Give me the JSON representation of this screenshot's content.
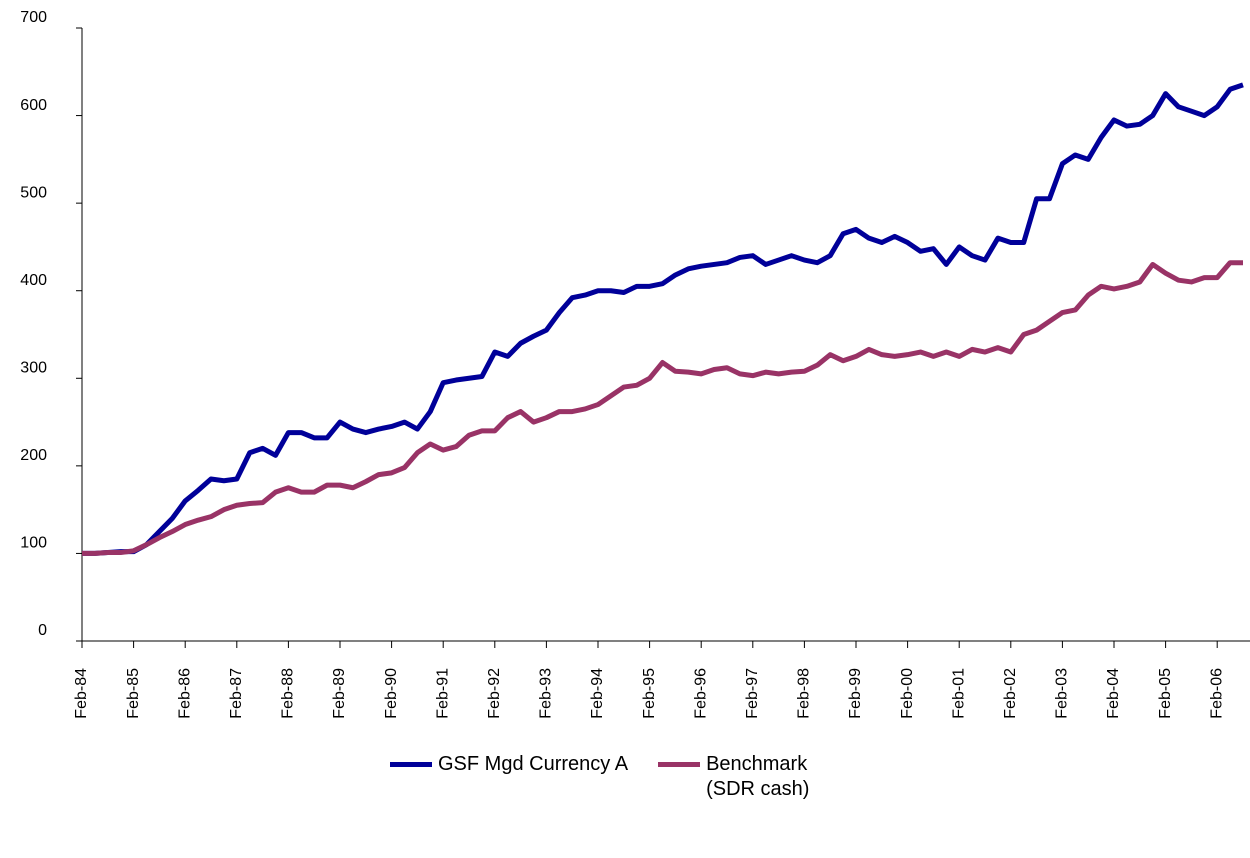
{
  "chart_data": {
    "type": "line",
    "categories": [
      "Feb-84",
      null,
      null,
      null,
      "Feb-85",
      null,
      null,
      null,
      "Feb-86",
      null,
      null,
      null,
      "Feb-87",
      null,
      null,
      null,
      "Feb-88",
      null,
      null,
      null,
      "Feb-89",
      null,
      null,
      null,
      "Feb-90",
      null,
      null,
      null,
      "Feb-91",
      null,
      null,
      null,
      "Feb-92",
      null,
      null,
      null,
      "Feb-93",
      null,
      null,
      null,
      "Feb-94",
      null,
      null,
      null,
      "Feb-95",
      null,
      null,
      null,
      "Feb-96",
      null,
      null,
      null,
      "Feb-97",
      null,
      null,
      null,
      "Feb-98",
      null,
      null,
      null,
      "Feb-99",
      null,
      null,
      null,
      "Feb-00",
      null,
      null,
      null,
      "Feb-01",
      null,
      null,
      null,
      "Feb-02",
      null,
      null,
      null,
      "Feb-03",
      null,
      null,
      null,
      "Feb-04",
      null,
      null,
      null,
      "Feb-05",
      null,
      null,
      null,
      "Feb-06",
      null,
      null
    ],
    "series": [
      {
        "name": "GSF Mgd Currency A",
        "color": "#000099",
        "values": [
          100,
          100,
          101,
          102,
          102,
          110,
          125,
          140,
          160,
          172,
          185,
          183,
          185,
          215,
          220,
          212,
          238,
          238,
          232,
          232,
          250,
          242,
          238,
          242,
          245,
          250,
          242,
          262,
          295,
          298,
          300,
          302,
          330,
          325,
          340,
          348,
          355,
          375,
          392,
          395,
          400,
          400,
          398,
          405,
          405,
          408,
          418,
          425,
          428,
          430,
          432,
          438,
          440,
          430,
          435,
          440,
          435,
          432,
          440,
          465,
          470,
          460,
          455,
          462,
          455,
          445,
          448,
          430,
          450,
          440,
          435,
          460,
          455,
          455,
          505,
          505,
          545,
          555,
          550,
          575,
          595,
          588,
          590,
          600,
          625,
          610,
          605,
          600,
          610,
          630,
          635
        ]
      },
      {
        "name": "Benchmark (SDR cash)",
        "color": "#993366",
        "values": [
          100,
          100,
          101,
          101,
          103,
          110,
          118,
          125,
          133,
          138,
          142,
          150,
          155,
          157,
          158,
          170,
          175,
          170,
          170,
          178,
          178,
          175,
          182,
          190,
          192,
          198,
          215,
          225,
          218,
          222,
          235,
          240,
          240,
          255,
          262,
          250,
          255,
          262,
          262,
          265,
          270,
          280,
          290,
          292,
          300,
          318,
          308,
          307,
          305,
          310,
          312,
          305,
          303,
          307,
          305,
          307,
          308,
          315,
          327,
          320,
          325,
          333,
          327,
          325,
          327,
          330,
          325,
          330,
          325,
          333,
          330,
          335,
          330,
          350,
          355,
          365,
          375,
          378,
          395,
          405,
          402,
          405,
          410,
          430,
          420,
          412,
          410,
          415,
          415,
          432,
          432
        ]
      }
    ],
    "ylim": [
      0,
      700
    ],
    "yticks": [
      0,
      100,
      200,
      300,
      400,
      500,
      600,
      700
    ]
  }
}
